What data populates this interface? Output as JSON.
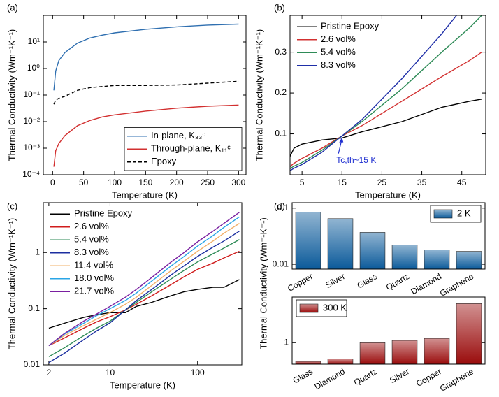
{
  "chart_data": [
    {
      "type": "line",
      "panel_label": "(a)",
      "xlabel": "Temperature (K)",
      "ylabel": "Thermal Conductivity (Wm⁻¹K⁻¹)",
      "xlim": [
        -15,
        312
      ],
      "ylim": [
        0.0001,
        100
      ],
      "ylog": true,
      "xticks": [
        0,
        50,
        100,
        150,
        200,
        250,
        300
      ],
      "yticks": [
        {
          "value": 0.0001,
          "label": "10⁻⁴"
        },
        {
          "value": 0.001,
          "label": "10⁻³"
        },
        {
          "value": 0.01,
          "label": "10⁻²"
        },
        {
          "value": 0.1,
          "label": "10⁻¹"
        },
        {
          "value": 1,
          "label": "10⁰"
        },
        {
          "value": 10,
          "label": "10¹"
        }
      ],
      "legend": "lower right",
      "legend_frame": true,
      "x": [
        2,
        5,
        10,
        20,
        40,
        60,
        80,
        100,
        150,
        200,
        250,
        300
      ],
      "series": [
        {
          "name": "In-plane, K₃₃ᶜ",
          "color": "#2f6fb0",
          "values": [
            0.15,
            0.8,
            2,
            4,
            9,
            14,
            18,
            22,
            30,
            37,
            43,
            47
          ]
        },
        {
          "name": "Through-plane, K₁₁ᶜ",
          "color": "#d23030",
          "values": [
            0.0002,
            0.0008,
            0.0015,
            0.003,
            0.007,
            0.011,
            0.015,
            0.018,
            0.025,
            0.032,
            0.038,
            0.042
          ]
        },
        {
          "name": "Epoxy",
          "color": "#000000",
          "style": "dashed",
          "values": [
            0.045,
            0.065,
            0.075,
            0.09,
            0.15,
            0.19,
            0.21,
            0.23,
            0.23,
            0.24,
            0.28,
            0.33
          ]
        }
      ]
    },
    {
      "type": "line",
      "panel_label": "(b)",
      "xlabel": "Temperature (K)",
      "ylabel": "Thermal Conductivity (Wm⁻¹K⁻¹)",
      "xlim": [
        2,
        51
      ],
      "ylim": [
        0,
        0.39
      ],
      "xticks": [
        5,
        15,
        25,
        35,
        45
      ],
      "yticks": [
        0.1,
        0.2,
        0.3
      ],
      "legend": "upper left",
      "legend_frame": false,
      "x": [
        2,
        3,
        5,
        10,
        15,
        20,
        30,
        40,
        47,
        50
      ],
      "series": [
        {
          "name": "Pristine Epoxy",
          "color": "#000000",
          "values": [
            0.045,
            0.065,
            0.075,
            0.085,
            0.09,
            0.105,
            0.13,
            0.165,
            0.18,
            0.185
          ]
        },
        {
          "name": "2.6 vol%",
          "color": "#d23030",
          "values": [
            0.02,
            0.028,
            0.04,
            0.065,
            0.095,
            0.12,
            0.18,
            0.24,
            0.28,
            0.3
          ]
        },
        {
          "name": "5.4 vol%",
          "color": "#2e8b57",
          "values": [
            0.015,
            0.021,
            0.03,
            0.06,
            0.095,
            0.13,
            0.21,
            0.3,
            0.36,
            0.39
          ]
        },
        {
          "name": "8.3 vol%",
          "color": "#1f2fa8",
          "values": [
            0.01,
            0.016,
            0.025,
            0.055,
            0.095,
            0.135,
            0.235,
            0.345,
            0.43,
            0.47
          ]
        }
      ],
      "annotation": {
        "text": "Tc,th~15 K",
        "x": 15,
        "y": 0.093,
        "color": "#1f2fd0"
      }
    },
    {
      "type": "line",
      "panel_label": "(c)",
      "xlabel": "Temperature (K)",
      "ylabel": "Thermal Conductivity (Wm⁻¹K⁻¹)",
      "xlim": [
        1.73,
        320
      ],
      "ylim": [
        0.01,
        7.7
      ],
      "xlog": true,
      "ylog": true,
      "xticks": [
        2,
        10,
        100
      ],
      "yticks": [
        0.01,
        0.1,
        1
      ],
      "legend": "upper left",
      "legend_frame": false,
      "x": [
        2,
        3,
        5,
        7,
        10,
        15,
        20,
        30,
        50,
        70,
        100,
        150,
        200,
        300
      ],
      "series": [
        {
          "name": "Pristine Epoxy",
          "color": "#000000",
          "values": [
            0.045,
            0.055,
            0.07,
            0.078,
            0.085,
            0.085,
            0.11,
            0.13,
            0.17,
            0.2,
            0.22,
            0.24,
            0.24,
            0.33
          ]
        },
        {
          "name": "2.6 vol%",
          "color": "#d01c1c",
          "values": [
            0.022,
            0.03,
            0.045,
            0.058,
            0.072,
            0.095,
            0.12,
            0.17,
            0.27,
            0.37,
            0.5,
            0.65,
            0.8,
            1.05
          ]
        },
        {
          "name": "5.4 vol%",
          "color": "#2e8b57",
          "values": [
            0.014,
            0.02,
            0.033,
            0.045,
            0.06,
            0.095,
            0.13,
            0.2,
            0.34,
            0.48,
            0.68,
            0.95,
            1.2,
            1.7
          ]
        },
        {
          "name": "8.3 vol%",
          "color": "#1c2fa0",
          "values": [
            0.011,
            0.016,
            0.028,
            0.04,
            0.056,
            0.095,
            0.14,
            0.22,
            0.4,
            0.58,
            0.85,
            1.25,
            1.6,
            2.4
          ]
        },
        {
          "name": "11.4 vol%",
          "color": "#f2b06a",
          "values": [
            0.022,
            0.033,
            0.05,
            0.065,
            0.085,
            0.12,
            0.16,
            0.26,
            0.48,
            0.7,
            1.05,
            1.6,
            2.2,
            3.3
          ]
        },
        {
          "name": "18.0 vol%",
          "color": "#2aa5e6",
          "values": [
            0.022,
            0.035,
            0.055,
            0.075,
            0.1,
            0.14,
            0.19,
            0.31,
            0.58,
            0.85,
            1.3,
            2.0,
            2.8,
            4.3
          ]
        },
        {
          "name": "21.7 vol%",
          "color": "#7a1fa0",
          "values": [
            0.022,
            0.036,
            0.06,
            0.08,
            0.11,
            0.16,
            0.22,
            0.36,
            0.68,
            1.0,
            1.55,
            2.4,
            3.3,
            5.2
          ]
        }
      ]
    },
    {
      "type": "bar",
      "panel_label": "(d)",
      "ylabel": "Thermal Conductivity (Wm⁻¹K⁻¹)",
      "ylim": [
        0.0082,
        0.125
      ],
      "ylog": true,
      "yticks": [
        0.01,
        0.1
      ],
      "legend": "upper right",
      "legend_frame": true,
      "categories": [
        "Copper",
        "Silver",
        "Glass",
        "Quartz",
        "Diamond",
        "Graphene"
      ],
      "series": [
        {
          "name": "2 K",
          "color": "#0b5a9a",
          "values": [
            0.085,
            0.065,
            0.037,
            0.022,
            0.018,
            0.017
          ]
        }
      ]
    },
    {
      "type": "bar",
      "ylim": [
        0.4,
        7
      ],
      "ylog": true,
      "yticks": [
        1
      ],
      "legend": "upper left",
      "legend_frame": true,
      "categories": [
        "Glass",
        "Diamond",
        "Quartz",
        "Silver",
        "Copper",
        "Graphene"
      ],
      "series": [
        {
          "name": "300 K",
          "color": "#9a0c0c",
          "values": [
            0.45,
            0.5,
            1.0,
            1.1,
            1.2,
            5.3
          ]
        }
      ]
    }
  ]
}
